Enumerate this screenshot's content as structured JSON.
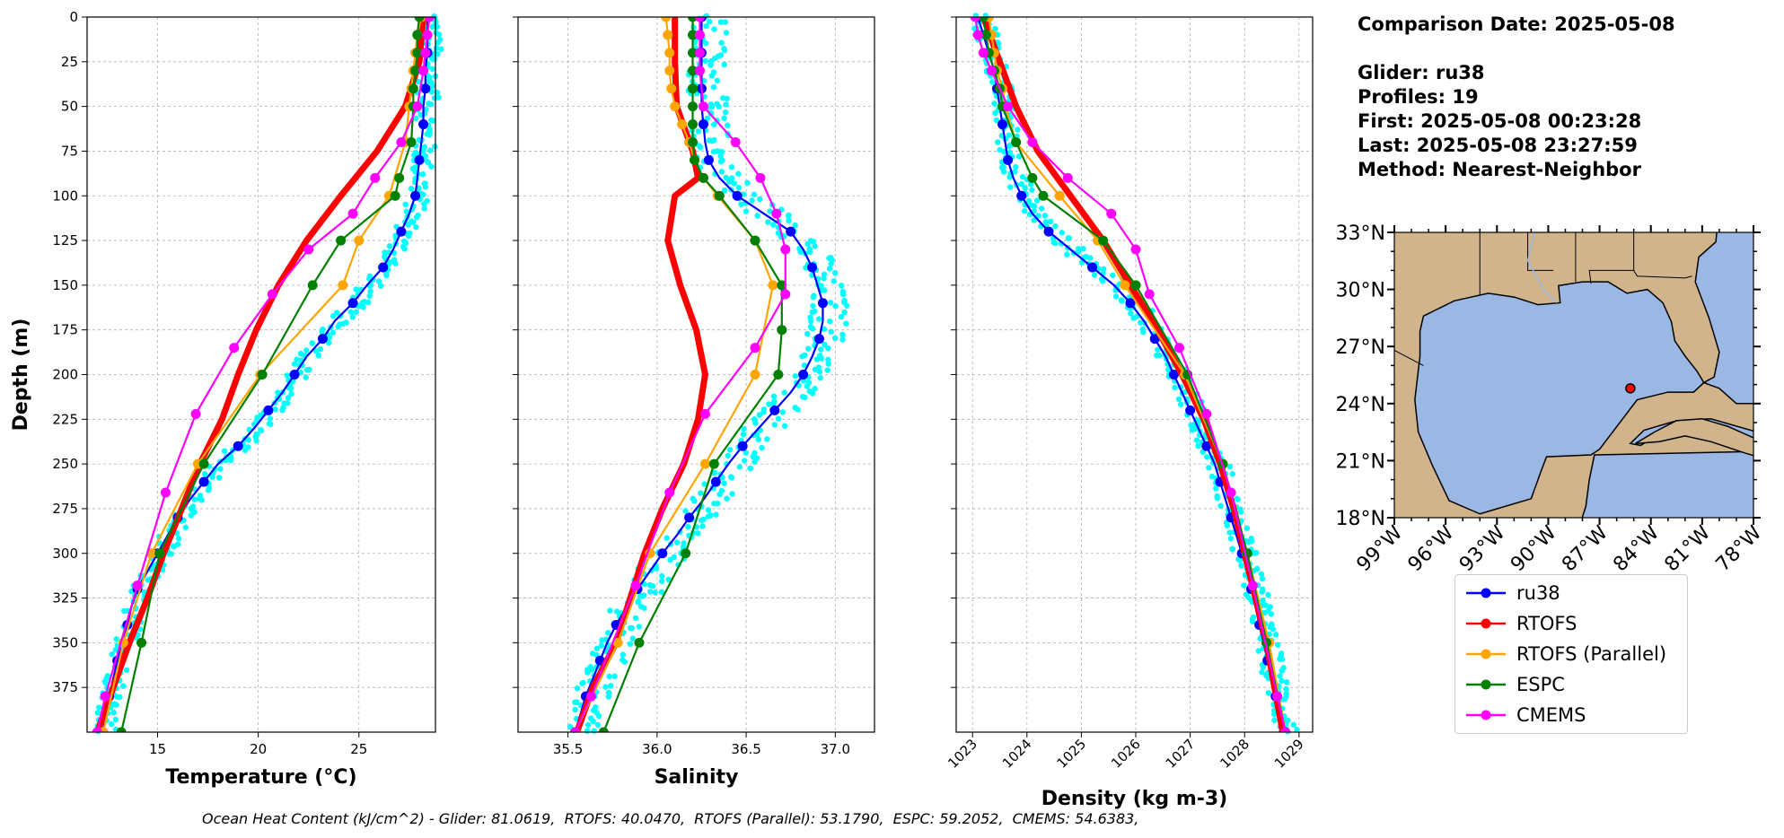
{
  "info": {
    "comparison_date": "Comparison Date: 2025-05-08",
    "glider": "Glider: ru38",
    "profiles": "Profiles: 19",
    "first": "First: 2025-05-08 00:23:28",
    "last": "Last: 2025-05-08 23:27:59",
    "method": "Method: Nearest-Neighbor"
  },
  "footer": "Ocean Heat Content (kJ/cm^2) - Glider: 81.0619,  RTOFS: 40.0470,  RTOFS (Parallel): 53.1790,  ESPC: 59.2052,  CMEMS: 54.6383,",
  "colors": {
    "ru38": "#0000ff",
    "rtofs": "#ff0000",
    "rtofs_parallel": "#ffa500",
    "espc": "#008000",
    "cmems": "#ff00ff",
    "scatter": "#00ffff",
    "land": "#d2b48c",
    "water": "#9ab8e3"
  },
  "legend": [
    {
      "label": "ru38",
      "color": "#0000ff"
    },
    {
      "label": "RTOFS",
      "color": "#ff0000"
    },
    {
      "label": "RTOFS (Parallel)",
      "color": "#ffa500"
    },
    {
      "label": "ESPC",
      "color": "#008000"
    },
    {
      "label": "CMEMS",
      "color": "#ff00ff"
    }
  ],
  "chart_data": [
    {
      "type": "line",
      "xlabel": "Temperature (°C)",
      "ylabel": "Depth (m)",
      "xlim": [
        11.5,
        28.8
      ],
      "ylim": [
        400,
        0
      ],
      "xticks": [
        15,
        20,
        25
      ],
      "yticks": [
        0,
        25,
        50,
        75,
        100,
        125,
        150,
        175,
        200,
        225,
        250,
        275,
        300,
        325,
        350,
        375
      ],
      "grid": true,
      "series": [
        {
          "name": "ru38",
          "color": "#0000ff",
          "y": [
            0,
            10,
            20,
            30,
            40,
            50,
            60,
            70,
            80,
            90,
            100,
            110,
            120,
            130,
            140,
            150,
            160,
            170,
            180,
            190,
            200,
            210,
            220,
            230,
            240,
            250,
            260,
            270,
            280,
            290,
            300,
            310,
            320,
            330,
            340,
            350,
            360,
            370,
            380,
            390,
            400
          ],
          "x": [
            28.4,
            28.4,
            28.4,
            28.3,
            28.3,
            28.2,
            28.2,
            28.1,
            28.0,
            27.9,
            27.8,
            27.5,
            27.1,
            26.7,
            26.2,
            25.4,
            24.7,
            23.8,
            23.2,
            22.4,
            21.8,
            21.2,
            20.5,
            19.8,
            19.0,
            18.0,
            17.3,
            16.6,
            16.0,
            15.5,
            15.0,
            14.5,
            14.0,
            13.7,
            13.5,
            13.3,
            13.0,
            12.8,
            12.6,
            12.4,
            12.3
          ]
        },
        {
          "name": "RTOFS",
          "color": "#ff0000",
          "y": [
            0,
            25,
            50,
            75,
            100,
            125,
            150,
            175,
            200,
            225,
            250,
            275,
            300,
            325,
            350,
            375,
            400
          ],
          "x": [
            28.2,
            28.0,
            27.3,
            25.9,
            24.1,
            22.4,
            21.0,
            19.9,
            19.0,
            18.2,
            17.1,
            16.2,
            15.3,
            14.5,
            13.6,
            12.8,
            12.0
          ]
        },
        {
          "name": "RTOFS (Parallel)",
          "color": "#ffa500",
          "y": [
            0,
            10,
            20,
            30,
            40,
            50,
            70,
            100,
            125,
            150,
            200,
            250,
            300,
            350,
            400
          ],
          "x": [
            28.1,
            27.9,
            27.8,
            27.7,
            27.6,
            27.5,
            27.3,
            26.5,
            25.0,
            24.2,
            20.1,
            17.0,
            14.7,
            13.3,
            12.3
          ]
        },
        {
          "name": "ESPC",
          "color": "#008000",
          "y": [
            0,
            10,
            20,
            30,
            40,
            50,
            70,
            90,
            100,
            125,
            150,
            200,
            250,
            300,
            350,
            400
          ],
          "x": [
            28.0,
            27.9,
            27.9,
            27.8,
            27.7,
            27.7,
            27.6,
            27.0,
            26.8,
            24.1,
            22.7,
            20.2,
            17.3,
            15.1,
            14.2,
            13.2
          ]
        },
        {
          "name": "CMEMS",
          "color": "#ff00ff",
          "y": [
            0,
            10,
            20,
            30,
            50,
            70,
            90,
            110,
            130,
            155,
            185,
            222,
            266,
            318,
            380,
            400
          ],
          "x": [
            28.5,
            28.4,
            28.3,
            28.2,
            27.9,
            27.1,
            25.8,
            24.7,
            22.5,
            20.7,
            18.8,
            16.9,
            15.4,
            14.0,
            12.4,
            12.0
          ]
        }
      ]
    },
    {
      "type": "line",
      "xlabel": "Salinity",
      "ylabel": "",
      "xlim": [
        35.22,
        37.22
      ],
      "ylim": [
        400,
        0
      ],
      "xticks": [
        35.5,
        36.0,
        36.5,
        37.0
      ],
      "grid": true,
      "series": [
        {
          "name": "ru38",
          "color": "#0000ff",
          "y": [
            0,
            10,
            20,
            30,
            40,
            50,
            60,
            70,
            80,
            90,
            100,
            110,
            120,
            130,
            140,
            150,
            160,
            170,
            180,
            190,
            200,
            210,
            220,
            230,
            240,
            250,
            260,
            270,
            280,
            290,
            300,
            310,
            320,
            330,
            340,
            350,
            360,
            370,
            380,
            390,
            400
          ],
          "x": [
            36.25,
            36.25,
            36.25,
            36.25,
            36.25,
            36.25,
            36.26,
            36.27,
            36.29,
            36.35,
            36.45,
            36.6,
            36.75,
            36.82,
            36.87,
            36.9,
            36.93,
            36.93,
            36.91,
            36.87,
            36.82,
            36.75,
            36.66,
            36.57,
            36.48,
            36.4,
            36.33,
            36.26,
            36.18,
            36.11,
            36.03,
            35.96,
            35.89,
            35.83,
            35.77,
            35.72,
            35.68,
            35.64,
            35.6,
            35.57,
            35.54
          ]
        },
        {
          "name": "RTOFS",
          "color": "#ff0000",
          "y": [
            0,
            25,
            50,
            75,
            90,
            100,
            125,
            150,
            175,
            200,
            225,
            250,
            275,
            300,
            325,
            350,
            375,
            400
          ],
          "x": [
            36.1,
            36.1,
            36.11,
            36.2,
            36.23,
            36.1,
            36.06,
            36.13,
            36.22,
            36.27,
            36.23,
            36.15,
            36.03,
            35.93,
            35.85,
            35.77,
            35.64,
            35.55
          ]
        },
        {
          "name": "RTOFS (Parallel)",
          "color": "#ffa500",
          "y": [
            0,
            10,
            20,
            30,
            40,
            50,
            60,
            70,
            80,
            90,
            100,
            125,
            150,
            200,
            250,
            300,
            350,
            400
          ],
          "x": [
            36.05,
            36.06,
            36.07,
            36.07,
            36.08,
            36.1,
            36.14,
            36.18,
            36.21,
            36.26,
            36.34,
            36.55,
            36.65,
            36.55,
            36.27,
            35.96,
            35.78,
            35.54
          ]
        },
        {
          "name": "ESPC",
          "color": "#008000",
          "y": [
            0,
            10,
            20,
            30,
            40,
            50,
            60,
            70,
            80,
            90,
            100,
            125,
            150,
            175,
            200,
            250,
            300,
            350,
            400
          ],
          "x": [
            36.2,
            36.2,
            36.2,
            36.2,
            36.2,
            36.2,
            36.2,
            36.2,
            36.21,
            36.26,
            36.35,
            36.55,
            36.7,
            36.7,
            36.68,
            36.32,
            36.16,
            35.9,
            35.7
          ]
        },
        {
          "name": "CMEMS",
          "color": "#ff00ff",
          "y": [
            0,
            10,
            20,
            30,
            50,
            70,
            90,
            110,
            130,
            155,
            185,
            222,
            266,
            318,
            380,
            400
          ],
          "x": [
            36.24,
            36.24,
            36.24,
            36.24,
            36.26,
            36.44,
            36.58,
            36.67,
            36.72,
            36.72,
            36.55,
            36.27,
            36.07,
            35.88,
            35.63,
            35.54
          ]
        }
      ]
    },
    {
      "type": "line",
      "xlabel": "Density (kg m-3)",
      "ylabel": "",
      "xlim": [
        1022.7,
        1029.25
      ],
      "ylim": [
        400,
        0
      ],
      "xticks": [
        1023,
        1024,
        1025,
        1026,
        1027,
        1028,
        1029
      ],
      "grid": true,
      "series": [
        {
          "name": "ru38",
          "color": "#0000ff",
          "y": [
            0,
            10,
            20,
            30,
            40,
            50,
            60,
            70,
            80,
            90,
            100,
            110,
            120,
            130,
            140,
            150,
            160,
            170,
            180,
            190,
            200,
            210,
            220,
            230,
            240,
            250,
            260,
            270,
            280,
            290,
            300,
            310,
            320,
            330,
            340,
            350,
            360,
            370,
            380,
            390,
            400
          ],
          "x": [
            1023.1,
            1023.2,
            1023.3,
            1023.4,
            1023.45,
            1023.5,
            1023.55,
            1023.6,
            1023.65,
            1023.75,
            1023.9,
            1024.1,
            1024.4,
            1024.8,
            1025.2,
            1025.6,
            1025.9,
            1026.15,
            1026.35,
            1026.55,
            1026.7,
            1026.85,
            1027.0,
            1027.15,
            1027.3,
            1027.45,
            1027.55,
            1027.65,
            1027.75,
            1027.85,
            1027.95,
            1028.05,
            1028.12,
            1028.2,
            1028.27,
            1028.35,
            1028.42,
            1028.5,
            1028.57,
            1028.65,
            1028.72
          ]
        },
        {
          "name": "RTOFS",
          "color": "#ff0000",
          "y": [
            0,
            25,
            50,
            75,
            100,
            125,
            150,
            175,
            200,
            225,
            250,
            275,
            300,
            325,
            350,
            375,
            400
          ],
          "x": [
            1023.2,
            1023.5,
            1023.8,
            1024.2,
            1024.8,
            1025.4,
            1025.9,
            1026.4,
            1026.85,
            1027.25,
            1027.55,
            1027.8,
            1028.0,
            1028.2,
            1028.4,
            1028.55,
            1028.7
          ]
        },
        {
          "name": "RTOFS (Parallel)",
          "color": "#ffa500",
          "y": [
            0,
            10,
            20,
            30,
            40,
            50,
            70,
            100,
            125,
            150,
            200,
            250,
            300,
            350,
            400
          ],
          "x": [
            1023.3,
            1023.35,
            1023.4,
            1023.45,
            1023.55,
            1023.6,
            1023.8,
            1024.6,
            1025.3,
            1025.8,
            1026.9,
            1027.6,
            1028.05,
            1028.45,
            1028.75
          ]
        },
        {
          "name": "ESPC",
          "color": "#008000",
          "y": [
            0,
            10,
            20,
            30,
            40,
            50,
            70,
            90,
            100,
            125,
            150,
            200,
            250,
            300,
            350,
            400
          ],
          "x": [
            1023.2,
            1023.25,
            1023.3,
            1023.4,
            1023.5,
            1023.55,
            1023.8,
            1024.1,
            1024.3,
            1025.4,
            1026.0,
            1026.95,
            1027.6,
            1028.05,
            1028.4,
            1028.75
          ]
        },
        {
          "name": "CMEMS",
          "color": "#ff00ff",
          "y": [
            0,
            10,
            20,
            30,
            50,
            70,
            90,
            110,
            130,
            155,
            185,
            222,
            266,
            318,
            380,
            400
          ],
          "x": [
            1023.05,
            1023.1,
            1023.2,
            1023.35,
            1023.65,
            1024.1,
            1024.75,
            1025.55,
            1026.0,
            1026.25,
            1026.8,
            1027.3,
            1027.75,
            1028.15,
            1028.6,
            1028.75
          ]
        }
      ]
    }
  ],
  "map": {
    "lat_labels": [
      "33°N",
      "30°N",
      "27°N",
      "24°N",
      "21°N",
      "18°N"
    ],
    "lon_labels": [
      "99°W",
      "96°W",
      "93°W",
      "90°W",
      "87°W",
      "84°W",
      "81°W",
      "78°W"
    ],
    "lon_range": [
      -99,
      -78
    ],
    "lat_range": [
      18,
      33
    ],
    "glider_position": {
      "lon": -85.2,
      "lat": 24.8
    }
  }
}
